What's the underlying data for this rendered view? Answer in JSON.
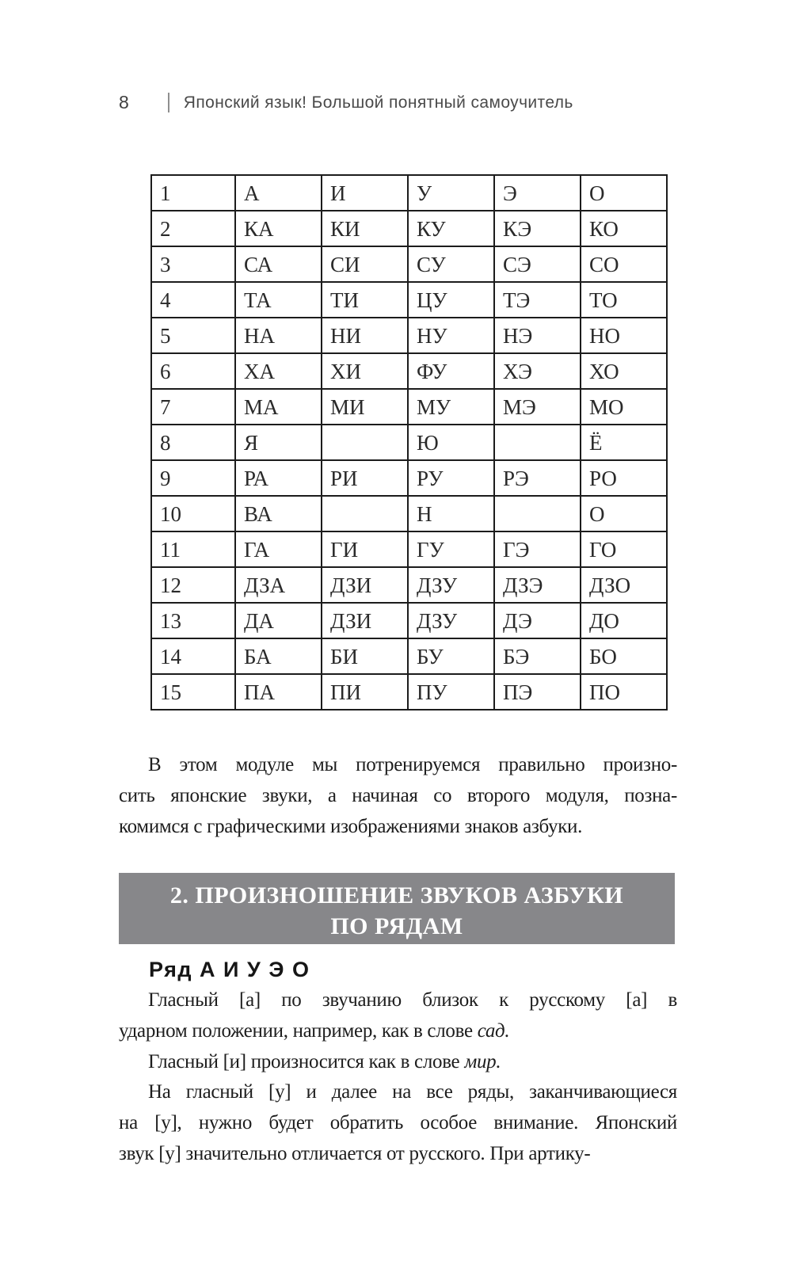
{
  "colors": {
    "heading_box_bg": "#87878a",
    "heading_box_text": "#ffffff",
    "table_border": "#1c1c1c"
  },
  "header": {
    "page_number": "8",
    "book_title": "Японский язык! Большой понятный самоучитель"
  },
  "table": {
    "rows": [
      [
        "1",
        "А",
        "И",
        "У",
        "Э",
        "О"
      ],
      [
        "2",
        "КА",
        "КИ",
        "КУ",
        "КЭ",
        "КО"
      ],
      [
        "3",
        "СА",
        "СИ",
        "СУ",
        "СЭ",
        "СО"
      ],
      [
        "4",
        "ТА",
        "ТИ",
        "ЦУ",
        "ТЭ",
        "ТО"
      ],
      [
        "5",
        "НА",
        "НИ",
        "НУ",
        "НЭ",
        "НО"
      ],
      [
        "6",
        "ХА",
        "ХИ",
        "ФУ",
        "ХЭ",
        "ХО"
      ],
      [
        "7",
        "МА",
        "МИ",
        "МУ",
        "МЭ",
        "МО"
      ],
      [
        "8",
        "Я",
        "",
        "Ю",
        "",
        "Ё"
      ],
      [
        "9",
        "РА",
        "РИ",
        "РУ",
        "РЭ",
        "РО"
      ],
      [
        "10",
        "ВА",
        "",
        "Н",
        "",
        "О"
      ],
      [
        "11",
        "ГА",
        "ГИ",
        "ГУ",
        "ГЭ",
        "ГО"
      ],
      [
        "12",
        "ДЗА",
        "ДЗИ",
        "ДЗУ",
        "ДЗЭ",
        "ДЗО"
      ],
      [
        "13",
        "ДА",
        "ДЗИ",
        "ДЗУ",
        "ДЭ",
        "ДО"
      ],
      [
        "14",
        "БА",
        "БИ",
        "БУ",
        "БЭ",
        "БО"
      ],
      [
        "15",
        "ПА",
        "ПИ",
        "ПУ",
        "ПЭ",
        "ПО"
      ]
    ]
  },
  "body": {
    "p1": {
      "l1": "В этом модуле мы потренируемся правильно произно-",
      "l2": "сить японские звуки, а начиная со второго модуля, позна-",
      "l3": "комимся с графическими изображениями знаков азбуки."
    },
    "section_heading": {
      "line1": "2. ПРОИЗНОШЕНИЕ ЗВУКОВ АЗБУКИ",
      "line2": "ПО РЯДАМ"
    },
    "row_heading": "Ряд А И У Э О",
    "p2": {
      "l1": "Гласный [а] по звучанию близок к русскому [а] в",
      "l2_text": "ударном положении, например, как в слове ",
      "l2_italic": "сад."
    },
    "p3": {
      "l1_text": "Гласный [и] произносится как в слове ",
      "l1_italic": "мир."
    },
    "p4": {
      "l1": "На гласный [у] и далее на все ряды, заканчивающиеся",
      "l2": "на [у], нужно будет обратить особое внимание. Японский",
      "l3": "звук [у] значительно отличается от русского. При артику-"
    }
  }
}
